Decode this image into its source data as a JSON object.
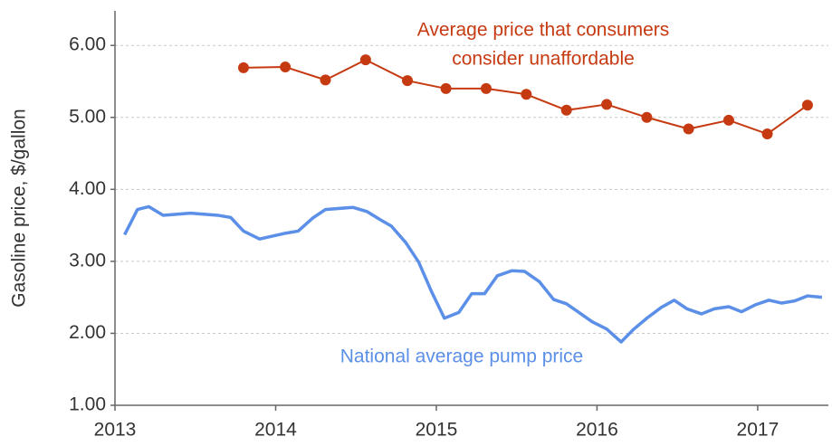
{
  "chart_data": {
    "type": "line",
    "y_label": "Gasoline price, $/gallon",
    "xlim": [
      2013,
      2017.44
    ],
    "xticks": [
      2013,
      2014,
      2015,
      2016,
      2017
    ],
    "ylim": [
      1,
      6.48
    ],
    "yticks": [
      {
        "value": 1,
        "label": "1.00"
      },
      {
        "value": 2,
        "label": "2.00"
      },
      {
        "value": 3,
        "label": "3.00"
      },
      {
        "value": 4,
        "label": "4.00"
      },
      {
        "value": 5,
        "label": "5.00"
      },
      {
        "value": 6,
        "label": "6.00"
      }
    ],
    "grid": true,
    "series": [
      {
        "name": "National average pump price",
        "color": "#5b8fe8",
        "markers": false,
        "x": [
          2013.06,
          2013.14,
          2013.21,
          2013.3,
          2013.47,
          2013.64,
          2013.72,
          2013.8,
          2013.9,
          2014.06,
          2014.14,
          2014.23,
          2014.31,
          2014.48,
          2014.57,
          2014.65,
          2014.72,
          2014.81,
          2014.89,
          2014.97,
          2015.05,
          2015.14,
          2015.22,
          2015.3,
          2015.38,
          2015.47,
          2015.55,
          2015.64,
          2015.73,
          2015.81,
          2015.9,
          2015.97,
          2016.06,
          2016.15,
          2016.23,
          2016.31,
          2016.4,
          2016.48,
          2016.56,
          2016.65,
          2016.73,
          2016.82,
          2016.9,
          2016.99,
          2017.07,
          2017.15,
          2017.23,
          2017.31,
          2017.4
        ],
        "values": [
          3.37,
          3.72,
          3.76,
          3.64,
          3.67,
          3.64,
          3.61,
          3.42,
          3.31,
          3.39,
          3.42,
          3.6,
          3.72,
          3.75,
          3.69,
          3.58,
          3.49,
          3.26,
          2.99,
          2.58,
          2.21,
          2.29,
          2.55,
          2.55,
          2.8,
          2.87,
          2.86,
          2.72,
          2.47,
          2.41,
          2.27,
          2.16,
          2.06,
          1.88,
          2.06,
          2.21,
          2.36,
          2.46,
          2.34,
          2.27,
          2.34,
          2.37,
          2.3,
          2.4,
          2.46,
          2.42,
          2.45,
          2.52,
          2.5
        ]
      },
      {
        "name": [
          "Average price that consumers",
          "consider unaffordable"
        ],
        "color": "#c63a12",
        "markers": true,
        "x": [
          2013.8,
          2014.06,
          2014.31,
          2014.56,
          2014.82,
          2015.06,
          2015.31,
          2015.56,
          2015.81,
          2016.06,
          2016.31,
          2016.57,
          2016.82,
          2017.06,
          2017.31
        ],
        "values": [
          5.69,
          5.7,
          5.52,
          5.8,
          5.51,
          5.4,
          5.4,
          5.32,
          5.1,
          5.18,
          5.0,
          4.84,
          4.96,
          4.77,
          5.17
        ]
      }
    ]
  }
}
